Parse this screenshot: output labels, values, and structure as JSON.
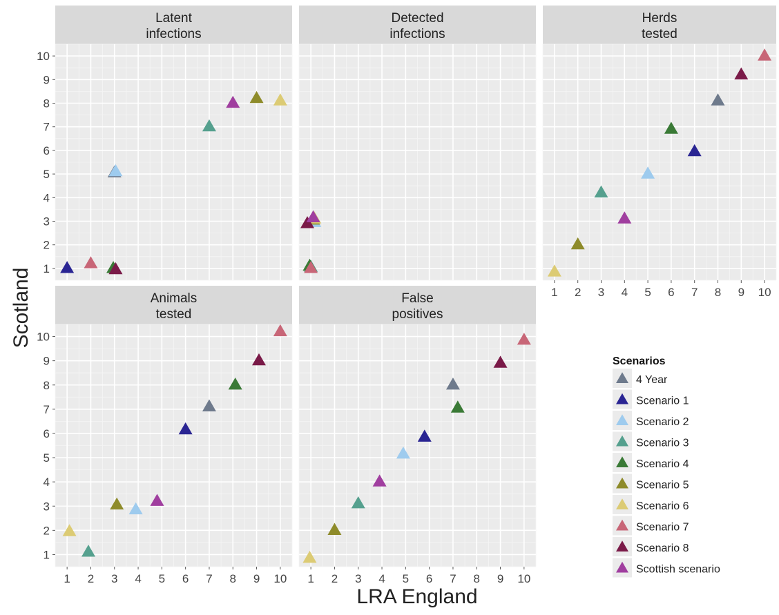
{
  "chart_data": {
    "type": "scatter",
    "xlabel": "LRA England",
    "ylabel": "Scotland",
    "xticks": [
      1,
      2,
      3,
      4,
      5,
      6,
      7,
      8,
      9,
      10
    ],
    "yticks": [
      1,
      2,
      3,
      4,
      5,
      6,
      7,
      8,
      9,
      10
    ],
    "xlim": [
      0.5,
      10.5
    ],
    "ylim": [
      0.5,
      10.5
    ],
    "grid": true,
    "marker": "triangle",
    "legend": {
      "title": "Scenarios",
      "position": "right",
      "entries": [
        {
          "name": "4 Year",
          "color": "#6e7a8c"
        },
        {
          "name": "Scenario 1",
          "color": "#2a2593"
        },
        {
          "name": "Scenario 2",
          "color": "#9ecbee"
        },
        {
          "name": "Scenario 3",
          "color": "#55a08e"
        },
        {
          "name": "Scenario 4",
          "color": "#3a7a36"
        },
        {
          "name": "Scenario 5",
          "color": "#8e8b2a"
        },
        {
          "name": "Scenario 6",
          "color": "#dccb74"
        },
        {
          "name": "Scenario 7",
          "color": "#c86677"
        },
        {
          "name": "Scenario 8",
          "color": "#7a1a48"
        },
        {
          "name": "Scottish scenario",
          "color": "#a03e9f"
        }
      ]
    },
    "panels": [
      {
        "title": "Latent\ninfections",
        "points": [
          {
            "series": "4 Year",
            "x": 3.0,
            "y": 5.05
          },
          {
            "series": "Scenario 1",
            "x": 1.0,
            "y": 1.0
          },
          {
            "series": "Scenario 2",
            "x": 3.05,
            "y": 5.1
          },
          {
            "series": "Scenario 3",
            "x": 7.0,
            "y": 7.0
          },
          {
            "series": "Scenario 4",
            "x": 2.95,
            "y": 1.0
          },
          {
            "series": "Scenario 5",
            "x": 9.0,
            "y": 8.2
          },
          {
            "series": "Scenario 6",
            "x": 10.0,
            "y": 8.1
          },
          {
            "series": "Scenario 7",
            "x": 2.0,
            "y": 1.2
          },
          {
            "series": "Scenario 8",
            "x": 3.05,
            "y": 0.95
          },
          {
            "series": "Scottish scenario",
            "x": 8.0,
            "y": 8.0
          }
        ]
      },
      {
        "title": "Detected\ninfections",
        "points": [
          {
            "series": "4 Year",
            "x": 1.1,
            "y": 3.0
          },
          {
            "series": "Scenario 1",
            "x": 1.05,
            "y": 3.05
          },
          {
            "series": "Scenario 2",
            "x": 1.15,
            "y": 2.95
          },
          {
            "series": "Scenario 3",
            "x": 1.0,
            "y": 1.05
          },
          {
            "series": "Scenario 4",
            "x": 0.95,
            "y": 1.1
          },
          {
            "series": "Scenario 5",
            "x": 1.1,
            "y": 3.05
          },
          {
            "series": "Scenario 6",
            "x": 1.15,
            "y": 3.1
          },
          {
            "series": "Scenario 7",
            "x": 1.0,
            "y": 1.0
          },
          {
            "series": "Scenario 8",
            "x": 0.85,
            "y": 2.9
          },
          {
            "series": "Scottish scenario",
            "x": 1.1,
            "y": 3.15
          }
        ]
      },
      {
        "title": "Herds\ntested",
        "points": [
          {
            "series": "4 Year",
            "x": 8.0,
            "y": 8.1
          },
          {
            "series": "Scenario 1",
            "x": 7.0,
            "y": 5.95
          },
          {
            "series": "Scenario 2",
            "x": 5.0,
            "y": 5.0
          },
          {
            "series": "Scenario 3",
            "x": 3.0,
            "y": 4.2
          },
          {
            "series": "Scenario 4",
            "x": 6.0,
            "y": 6.9
          },
          {
            "series": "Scenario 5",
            "x": 2.0,
            "y": 2.0
          },
          {
            "series": "Scenario 6",
            "x": 1.0,
            "y": 0.85
          },
          {
            "series": "Scenario 7",
            "x": 10.0,
            "y": 10.0
          },
          {
            "series": "Scenario 8",
            "x": 9.0,
            "y": 9.2
          },
          {
            "series": "Scottish scenario",
            "x": 4.0,
            "y": 3.1
          }
        ]
      },
      {
        "title": "Animals\ntested",
        "points": [
          {
            "series": "4 Year",
            "x": 7.0,
            "y": 7.1
          },
          {
            "series": "Scenario 1",
            "x": 6.0,
            "y": 6.15
          },
          {
            "series": "Scenario 2",
            "x": 3.9,
            "y": 2.85
          },
          {
            "series": "Scenario 3",
            "x": 1.9,
            "y": 1.1
          },
          {
            "series": "Scenario 4",
            "x": 8.1,
            "y": 8.0
          },
          {
            "series": "Scenario 5",
            "x": 3.1,
            "y": 3.05
          },
          {
            "series": "Scenario 6",
            "x": 1.1,
            "y": 1.95
          },
          {
            "series": "Scenario 7",
            "x": 10.0,
            "y": 10.2
          },
          {
            "series": "Scenario 8",
            "x": 9.1,
            "y": 9.0
          },
          {
            "series": "Scottish scenario",
            "x": 4.8,
            "y": 3.2
          }
        ]
      },
      {
        "title": "False\npositives",
        "points": [
          {
            "series": "4 Year",
            "x": 7.0,
            "y": 8.0
          },
          {
            "series": "Scenario 1",
            "x": 5.8,
            "y": 5.85
          },
          {
            "series": "Scenario 2",
            "x": 4.9,
            "y": 5.15
          },
          {
            "series": "Scenario 3",
            "x": 3.0,
            "y": 3.1
          },
          {
            "series": "Scenario 4",
            "x": 7.2,
            "y": 7.05
          },
          {
            "series": "Scenario 5",
            "x": 2.0,
            "y": 2.0
          },
          {
            "series": "Scenario 6",
            "x": 0.95,
            "y": 0.85
          },
          {
            "series": "Scenario 7",
            "x": 10.0,
            "y": 9.85
          },
          {
            "series": "Scenario 8",
            "x": 9.0,
            "y": 8.9
          },
          {
            "series": "Scottish scenario",
            "x": 3.9,
            "y": 4.0
          }
        ]
      }
    ]
  }
}
